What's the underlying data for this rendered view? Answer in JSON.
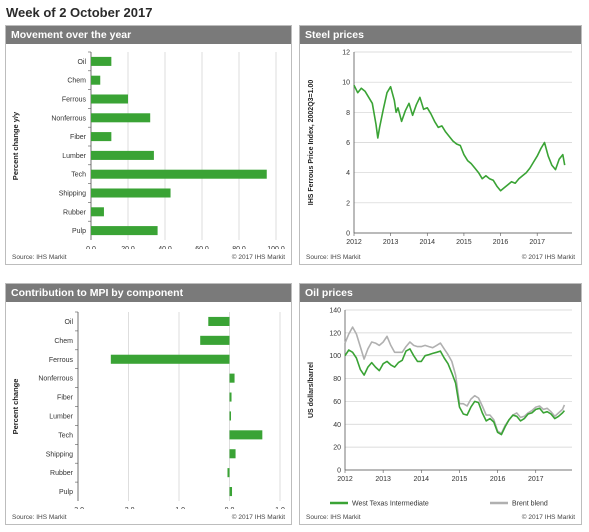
{
  "page": {
    "title": "Week of 2 October 2017"
  },
  "colors": {
    "accent": "#3aa335",
    "header": "#7a7a7a",
    "brent": "#b0b0b0",
    "grid": "#d0d0d0"
  },
  "panels": {
    "movement": {
      "title": "Movement  over  the year",
      "source": "Source: IHS Markit",
      "copyright": "© 2017 IHS Markit"
    },
    "steel": {
      "title": "Steel prices",
      "source": "Source: IHS Markit",
      "copyright": "© 2017 IHS Markit"
    },
    "contribution": {
      "title": "Contribution  to  MPI by component",
      "source": "Source: IHS Markit",
      "copyright": "© 2017 IHS Markit"
    },
    "oil": {
      "title": "Oil  prices",
      "source": "Source: IHS Markit",
      "copyright": "© 2017 IHS Markit"
    }
  },
  "chart_data": [
    {
      "id": "movement",
      "type": "bar",
      "orientation": "horizontal",
      "categories": [
        "Oil",
        "Chem",
        "Ferrous",
        "Nonferrous",
        "Fiber",
        "Lumber",
        "Tech",
        "Shipping",
        "Rubber",
        "Pulp"
      ],
      "values": [
        11,
        5,
        20,
        32,
        11,
        34,
        95,
        43,
        7,
        36
      ],
      "xlim": [
        0,
        100
      ],
      "xticks": [
        "0.0",
        "20.0",
        "40.0",
        "60.0",
        "80.0",
        "100.0"
      ],
      "ylabel": "Percent change y/y",
      "grid": true
    },
    {
      "id": "steel",
      "type": "line",
      "ylabel": "IHS Ferrous Price Index, 2002Q3=1.00",
      "ylim": [
        0,
        12
      ],
      "yticks": [
        "0",
        "2",
        "4",
        "6",
        "8",
        "10",
        "12"
      ],
      "xlim": [
        2012,
        2017.95
      ],
      "xticks": [
        "2012",
        "2013",
        "2014",
        "2015",
        "2016",
        "2017"
      ],
      "grid": true,
      "series": [
        {
          "x": [
            2012.0,
            2012.1,
            2012.2,
            2012.3,
            2012.4,
            2012.5,
            2012.6,
            2012.65,
            2012.7,
            2012.8,
            2012.9,
            2013.0,
            2013.1,
            2013.15,
            2013.2,
            2013.3,
            2013.4,
            2013.5,
            2013.6,
            2013.7,
            2013.8,
            2013.9,
            2014.0,
            2014.1,
            2014.2,
            2014.3,
            2014.4,
            2014.5,
            2014.6,
            2014.7,
            2014.8,
            2014.9,
            2015.0,
            2015.1,
            2015.2,
            2015.3,
            2015.4,
            2015.5,
            2015.6,
            2015.7,
            2015.8,
            2015.9,
            2016.0,
            2016.1,
            2016.2,
            2016.3,
            2016.4,
            2016.5,
            2016.6,
            2016.7,
            2016.8,
            2016.9,
            2017.0,
            2017.1,
            2017.2,
            2017.3,
            2017.4,
            2017.5,
            2017.6,
            2017.7,
            2017.75
          ],
          "y": [
            9.8,
            9.3,
            9.6,
            9.4,
            9.0,
            8.6,
            7.2,
            6.3,
            7.0,
            8.2,
            9.3,
            9.7,
            8.8,
            8.0,
            8.3,
            7.4,
            8.1,
            8.6,
            7.8,
            8.5,
            9.0,
            8.2,
            8.3,
            7.9,
            7.4,
            7.0,
            7.1,
            6.7,
            6.4,
            6.1,
            5.9,
            5.8,
            5.2,
            4.8,
            4.6,
            4.3,
            4.0,
            3.6,
            3.8,
            3.6,
            3.5,
            3.1,
            2.8,
            3.0,
            3.2,
            3.4,
            3.3,
            3.6,
            3.8,
            4.0,
            4.3,
            4.7,
            5.1,
            5.6,
            6.0,
            5.1,
            4.5,
            4.2,
            4.9,
            5.2,
            4.5
          ]
        }
      ]
    },
    {
      "id": "contribution",
      "type": "bar",
      "orientation": "horizontal",
      "categories": [
        "Oil",
        "Chem",
        "Ferrous",
        "Nonferrous",
        "Fiber",
        "Lumber",
        "Tech",
        "Shipping",
        "Rubber",
        "Pulp"
      ],
      "values": [
        -0.42,
        -0.58,
        -2.35,
        0.1,
        0.04,
        0.02,
        0.65,
        0.12,
        -0.04,
        0.05
      ],
      "xlim": [
        -3,
        1
      ],
      "xticks": [
        "-3.0",
        "-2.0",
        "-1.0",
        "0.0",
        "1.0"
      ],
      "ylabel": "Percent change",
      "grid": true
    },
    {
      "id": "oil",
      "type": "line",
      "ylabel": "US dollars/barrel",
      "ylim": [
        0,
        140
      ],
      "yticks": [
        "0",
        "20",
        "40",
        "60",
        "80",
        "100",
        "120",
        "140"
      ],
      "xlim": [
        2012,
        2017.95
      ],
      "xticks": [
        "2012",
        "2013",
        "2014",
        "2015",
        "2016",
        "2017"
      ],
      "legend": "bottom",
      "grid": true,
      "series": [
        {
          "name": "West Texas Intermediate",
          "x": [
            2012.0,
            2012.1,
            2012.2,
            2012.3,
            2012.4,
            2012.5,
            2012.6,
            2012.7,
            2012.8,
            2012.9,
            2013.0,
            2013.1,
            2013.2,
            2013.3,
            2013.4,
            2013.5,
            2013.6,
            2013.7,
            2013.8,
            2013.9,
            2014.0,
            2014.1,
            2014.2,
            2014.3,
            2014.4,
            2014.5,
            2014.6,
            2014.7,
            2014.8,
            2014.9,
            2015.0,
            2015.1,
            2015.2,
            2015.3,
            2015.4,
            2015.5,
            2015.6,
            2015.7,
            2015.8,
            2015.9,
            2016.0,
            2016.1,
            2016.2,
            2016.3,
            2016.4,
            2016.5,
            2016.6,
            2016.7,
            2016.8,
            2016.9,
            2017.0,
            2017.1,
            2017.2,
            2017.3,
            2017.4,
            2017.5,
            2017.6,
            2017.7,
            2017.75
          ],
          "y": [
            100,
            105,
            103,
            98,
            88,
            83,
            90,
            94,
            90,
            87,
            93,
            95,
            92,
            90,
            94,
            96,
            104,
            106,
            100,
            95,
            95,
            100,
            101,
            102,
            103,
            104,
            98,
            93,
            85,
            76,
            55,
            49,
            48,
            55,
            60,
            59,
            50,
            43,
            45,
            42,
            33,
            31,
            38,
            44,
            48,
            47,
            43,
            45,
            49,
            50,
            53,
            54,
            50,
            51,
            49,
            45,
            47,
            50,
            52
          ]
        },
        {
          "name": "Brent blend",
          "x": [
            2012.0,
            2012.1,
            2012.2,
            2012.3,
            2012.4,
            2012.5,
            2012.6,
            2012.7,
            2012.8,
            2012.9,
            2013.0,
            2013.1,
            2013.2,
            2013.3,
            2013.4,
            2013.5,
            2013.6,
            2013.7,
            2013.8,
            2013.9,
            2014.0,
            2014.1,
            2014.2,
            2014.3,
            2014.4,
            2014.5,
            2014.6,
            2014.7,
            2014.8,
            2014.9,
            2015.0,
            2015.1,
            2015.2,
            2015.3,
            2015.4,
            2015.5,
            2015.6,
            2015.7,
            2015.8,
            2015.9,
            2016.0,
            2016.1,
            2016.2,
            2016.3,
            2016.4,
            2016.5,
            2016.6,
            2016.7,
            2016.8,
            2016.9,
            2017.0,
            2017.1,
            2017.2,
            2017.3,
            2017.4,
            2017.5,
            2017.6,
            2017.7,
            2017.75
          ],
          "y": [
            111,
            119,
            125,
            119,
            108,
            97,
            106,
            112,
            111,
            109,
            112,
            117,
            109,
            103,
            103,
            103,
            108,
            112,
            109,
            108,
            108,
            109,
            108,
            107,
            109,
            111,
            106,
            101,
            95,
            83,
            58,
            58,
            56,
            62,
            65,
            63,
            56,
            48,
            48,
            44,
            34,
            32,
            39,
            44,
            48,
            50,
            46,
            47,
            50,
            52,
            55,
            56,
            53,
            54,
            51,
            47,
            50,
            53,
            57
          ]
        }
      ]
    }
  ]
}
